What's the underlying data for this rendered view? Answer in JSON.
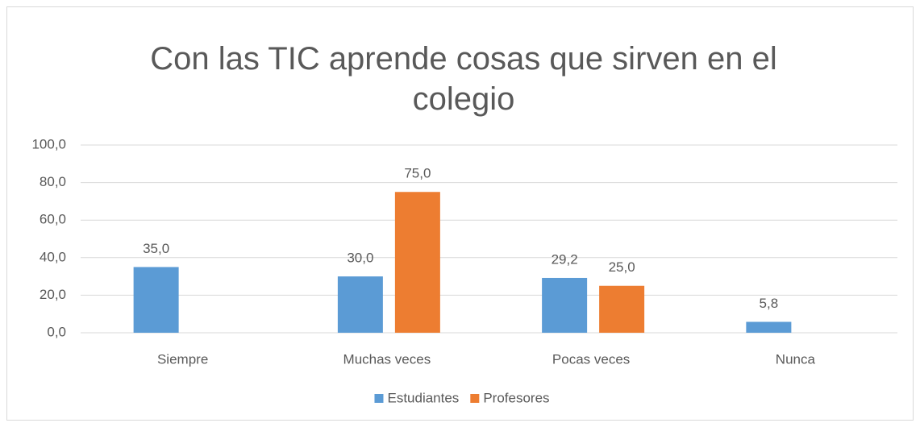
{
  "chart_data": {
    "type": "bar",
    "title": "Con las TIC aprende cosas que sirven en el colegio",
    "categories": [
      "Siempre",
      "Muchas veces",
      "Pocas veces",
      "Nunca"
    ],
    "series": [
      {
        "name": "Estudiantes",
        "color": "#5b9bd5",
        "values": [
          35.0,
          30.0,
          29.2,
          5.8
        ],
        "value_labels": [
          "35,0",
          "30,0",
          "29,2",
          "5,8"
        ]
      },
      {
        "name": "Profesores",
        "color": "#ed7d31",
        "values": [
          null,
          75.0,
          25.0,
          null
        ],
        "value_labels": [
          null,
          "75,0",
          "25,0",
          null
        ]
      }
    ],
    "ylim": [
      0,
      100
    ],
    "yticks": [
      {
        "value": 0,
        "label": "0,0"
      },
      {
        "value": 20,
        "label": "20,0"
      },
      {
        "value": 40,
        "label": "40,0"
      },
      {
        "value": 60,
        "label": "60,0"
      },
      {
        "value": 80,
        "label": "80,0"
      },
      {
        "value": 100,
        "label": "100,0"
      }
    ],
    "grid": true,
    "legend": "bottom"
  }
}
